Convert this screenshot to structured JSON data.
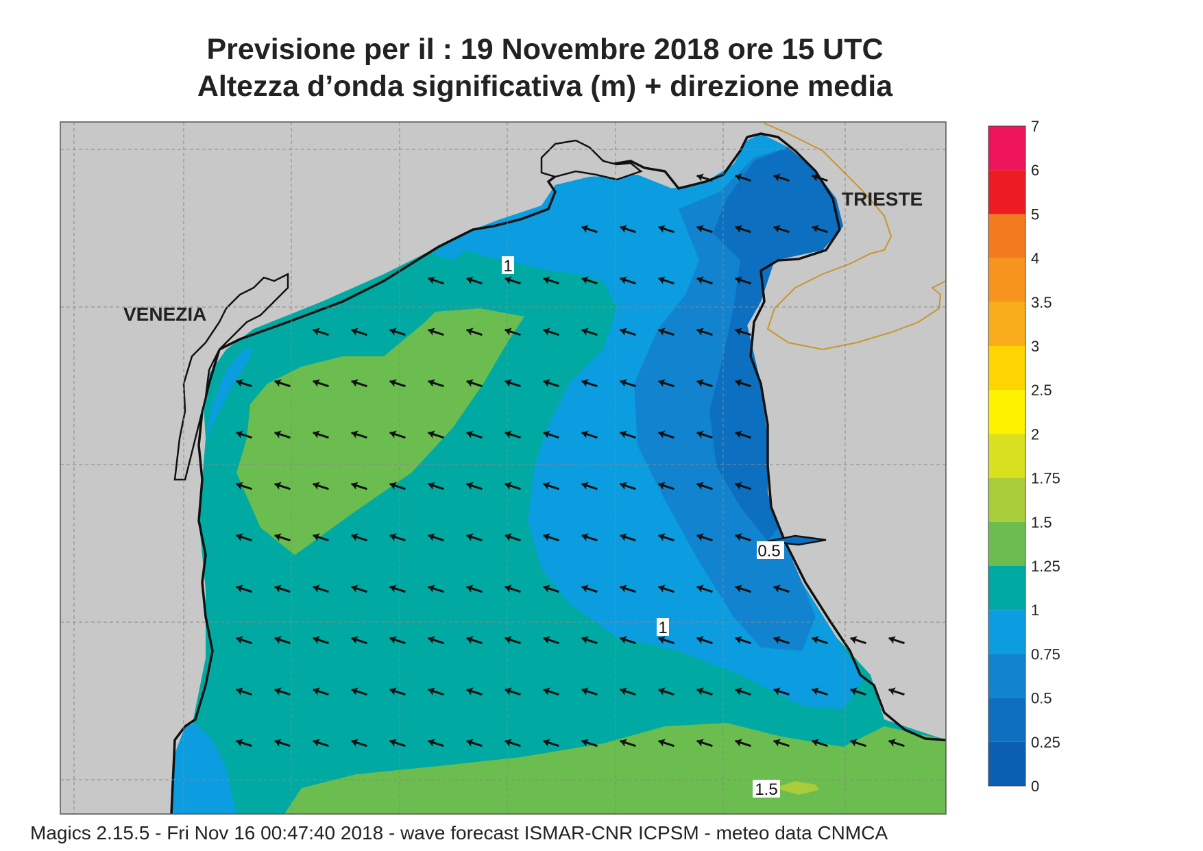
{
  "title": {
    "line1": "Previsione per il  :  19 Novembre  2018   ore 15 UTC",
    "line2": "Altezza d’onda significativa (m) + direzione media"
  },
  "labels": {
    "venezia": "VENEZIA",
    "trieste": "TRIESTE"
  },
  "contour_labels": [
    "1",
    "1",
    "0.5",
    "1.5"
  ],
  "legend": {
    "ticks": [
      "0",
      "0.25",
      "0.5",
      "0.75",
      "1",
      "1.25",
      "1.5",
      "1.75",
      "2",
      "2.5",
      "3",
      "3.5",
      "4",
      "5",
      "6",
      "7"
    ],
    "colors": [
      "#0a5fb0",
      "#0c6fc0",
      "#1283cf",
      "#0b9de0",
      "#00aaa3",
      "#6cbd4f",
      "#a8cc3a",
      "#d8e020",
      "#fff200",
      "#ffd500",
      "#f9ad1a",
      "#f7941d",
      "#f47a20",
      "#ed1c24",
      "#ed145b"
    ]
  },
  "footer": "Magics 2.15.5 - Fri Nov 16 00:47:40 2018 - wave forecast  ISMAR-CNR  ICPSM - meteo data   CNMCA",
  "arrow_direction": "toward-west-southwest"
}
